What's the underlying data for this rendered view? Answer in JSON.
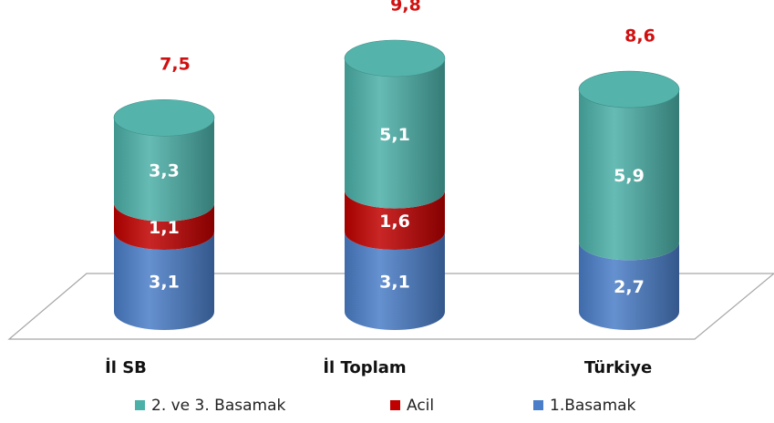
{
  "chart_data": {
    "type": "stacked-cylinder",
    "categories": [
      "İl SB",
      "İl Toplam",
      "Türkiye"
    ],
    "series": [
      {
        "name": "2. ve 3. Basamak",
        "color": "#4bb0a8",
        "values": [
          3.3,
          5.1,
          5.9
        ],
        "value_labels": [
          "3,3",
          "5,1",
          "5,9"
        ]
      },
      {
        "name": "Acil",
        "color": "#c00000",
        "values": [
          1.1,
          1.6,
          null
        ],
        "value_labels": [
          "1,1",
          "1,6",
          null
        ]
      },
      {
        "name": "1.Basamak",
        "color": "#4a7ec8",
        "values": [
          3.1,
          3.1,
          2.7
        ],
        "value_labels": [
          "3,1",
          "3,1",
          "2,7"
        ]
      }
    ],
    "totals": [
      7.5,
      9.8,
      8.6
    ],
    "total_labels": [
      "7,5",
      "9,8",
      "8,6"
    ],
    "legend": "bottom"
  }
}
